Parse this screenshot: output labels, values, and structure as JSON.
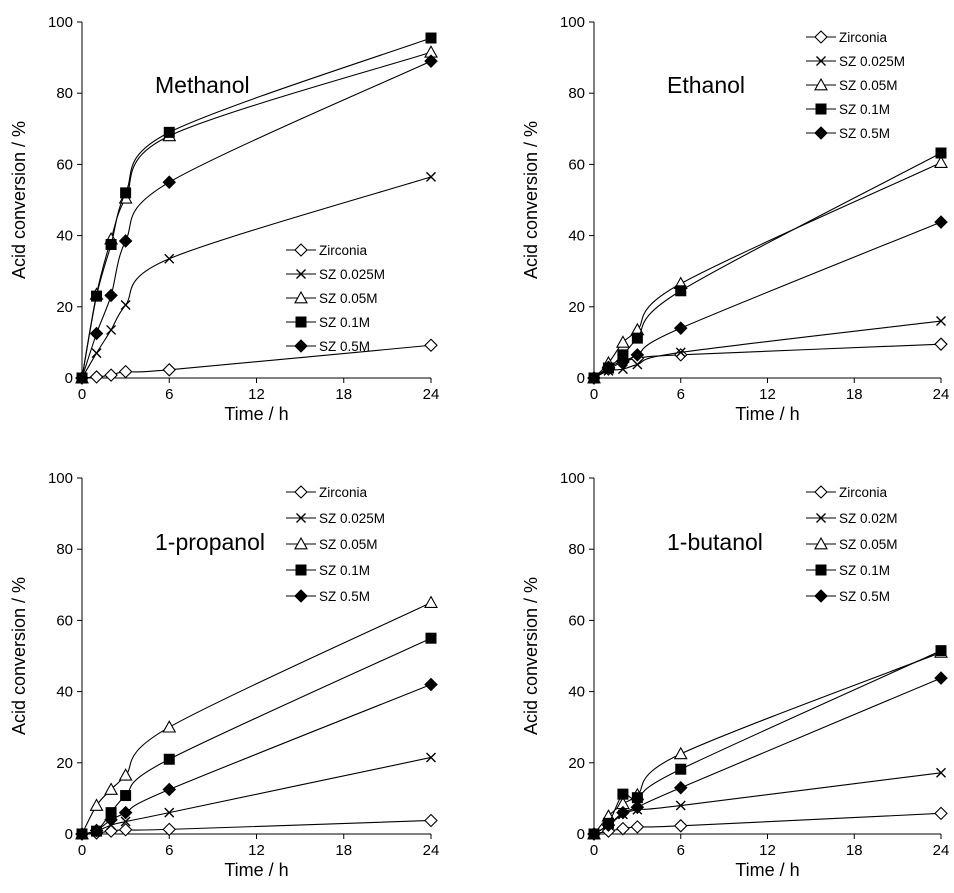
{
  "chart_data": [
    {
      "type": "line",
      "title": "Methanol",
      "xlabel": "Time / h",
      "ylabel": "Acid conversion / %",
      "xlim": [
        0,
        24
      ],
      "ylim": [
        0,
        100
      ],
      "xticks": [
        "0",
        "6",
        "12",
        "18",
        "24"
      ],
      "yticks": [
        "0",
        "20",
        "40",
        "60",
        "80",
        "100"
      ],
      "grid": false,
      "legend_position": "lower-right",
      "series": [
        {
          "name": "Zirconia",
          "marker": "open-diamond",
          "x": [
            0,
            1,
            2,
            3,
            6,
            24
          ],
          "y": [
            0,
            0.3,
            0.8,
            1.8,
            2.3,
            9.2
          ]
        },
        {
          "name": "SZ 0.025M",
          "marker": "cross",
          "x": [
            0,
            1,
            2,
            3,
            6,
            24
          ],
          "y": [
            0,
            7,
            13.5,
            20.5,
            33.5,
            56.5
          ]
        },
        {
          "name": "SZ 0.05M",
          "marker": "open-triangle",
          "x": [
            0,
            1,
            2,
            3,
            6,
            24
          ],
          "y": [
            0,
            23.5,
            39,
            50.5,
            68,
            91.5
          ]
        },
        {
          "name": "SZ 0.1M",
          "marker": "filled-square",
          "x": [
            0,
            1,
            2,
            3,
            6,
            24
          ],
          "y": [
            0,
            23,
            37.5,
            52,
            69,
            95.5
          ]
        },
        {
          "name": "SZ 0.5M",
          "marker": "filled-diamond",
          "x": [
            0,
            1,
            2,
            3,
            6,
            24
          ],
          "y": [
            0,
            12.5,
            23.2,
            38.5,
            55,
            89
          ]
        }
      ]
    },
    {
      "type": "line",
      "title": "Ethanol",
      "xlabel": "Time / h",
      "ylabel": "Acid conversion / %",
      "xlim": [
        0,
        24
      ],
      "ylim": [
        0,
        100
      ],
      "xticks": [
        "0",
        "6",
        "12",
        "18",
        "24"
      ],
      "yticks": [
        "0",
        "20",
        "40",
        "60",
        "80",
        "100"
      ],
      "grid": false,
      "legend_position": "top-right",
      "series": [
        {
          "name": "Zirconia",
          "marker": "open-diamond",
          "x": [
            0,
            1,
            2,
            3,
            6,
            24
          ],
          "y": [
            0,
            2.5,
            4.5,
            5.5,
            6.5,
            9.5
          ]
        },
        {
          "name": "SZ 0.025M",
          "marker": "cross",
          "x": [
            0,
            1,
            2,
            3,
            6,
            24
          ],
          "y": [
            0,
            2,
            2.5,
            3.8,
            7.2,
            16
          ]
        },
        {
          "name": "SZ 0.05M",
          "marker": "open-triangle",
          "x": [
            0,
            1,
            2,
            3,
            6,
            24
          ],
          "y": [
            0,
            4.2,
            10,
            13.5,
            26.5,
            60.5
          ]
        },
        {
          "name": "SZ 0.1M",
          "marker": "filled-square",
          "x": [
            0,
            1,
            2,
            3,
            6,
            24
          ],
          "y": [
            0,
            2.8,
            6.5,
            11.2,
            24.5,
            63.2
          ]
        },
        {
          "name": "SZ 0.5M",
          "marker": "filled-diamond",
          "x": [
            0,
            1,
            2,
            3,
            6,
            24
          ],
          "y": [
            0,
            3,
            4.8,
            6.5,
            14,
            43.8
          ]
        }
      ]
    },
    {
      "type": "line",
      "title": "1-propanol",
      "xlabel": "Time / h",
      "ylabel": "Acid conversion / %",
      "xlim": [
        0,
        24
      ],
      "ylim": [
        0,
        100
      ],
      "xticks": [
        "0",
        "6",
        "12",
        "18",
        "24"
      ],
      "yticks": [
        "0",
        "20",
        "40",
        "60",
        "80",
        "100"
      ],
      "grid": false,
      "legend_position": "top-right",
      "series": [
        {
          "name": "Zirconia",
          "marker": "open-diamond",
          "x": [
            0,
            1,
            2,
            3,
            6,
            24
          ],
          "y": [
            0,
            0.3,
            0.8,
            1.2,
            1.3,
            3.8
          ]
        },
        {
          "name": "SZ 0.025M",
          "marker": "cross",
          "x": [
            0,
            1,
            2,
            3,
            6,
            24
          ],
          "y": [
            0,
            0.8,
            2.5,
            3.5,
            6,
            21.5
          ]
        },
        {
          "name": "SZ 0.05M",
          "marker": "open-triangle",
          "x": [
            0,
            1,
            2,
            3,
            6,
            24
          ],
          "y": [
            0,
            8,
            12.5,
            16.5,
            30,
            65
          ]
        },
        {
          "name": "SZ 0.1M",
          "marker": "filled-square",
          "x": [
            0,
            1,
            2,
            3,
            6,
            24
          ],
          "y": [
            0,
            0.8,
            6,
            10.8,
            21,
            55
          ]
        },
        {
          "name": "SZ 0.5M",
          "marker": "filled-diamond",
          "x": [
            0,
            1,
            2,
            3,
            6,
            24
          ],
          "y": [
            0,
            1,
            4,
            6,
            12.5,
            42
          ]
        }
      ]
    },
    {
      "type": "line",
      "title": "1-butanol",
      "xlabel": "Time / h",
      "ylabel": "Acid conversion / %",
      "xlim": [
        0,
        24
      ],
      "ylim": [
        0,
        100
      ],
      "xticks": [
        "0",
        "6",
        "12",
        "18",
        "24"
      ],
      "yticks": [
        "0",
        "20",
        "40",
        "60",
        "80",
        "100"
      ],
      "grid": false,
      "legend_position": "top-right",
      "series": [
        {
          "name": "Zirconia",
          "marker": "open-diamond",
          "x": [
            0,
            1,
            2,
            3,
            6,
            24
          ],
          "y": [
            0,
            0.8,
            1.5,
            2,
            2.3,
            5.8
          ]
        },
        {
          "name": "SZ 0.02M",
          "marker": "cross",
          "x": [
            0,
            1,
            2,
            3,
            6,
            24
          ],
          "y": [
            0,
            2.5,
            5.5,
            6.8,
            8,
            17.2
          ]
        },
        {
          "name": "SZ 0.05M",
          "marker": "open-triangle",
          "x": [
            0,
            1,
            2,
            3,
            6,
            24
          ],
          "y": [
            0,
            5,
            8.5,
            11,
            22.5,
            51
          ]
        },
        {
          "name": "SZ 0.1M",
          "marker": "filled-square",
          "x": [
            0,
            1,
            2,
            3,
            6,
            24
          ],
          "y": [
            0,
            3,
            11.2,
            10.2,
            18.2,
            51.5
          ]
        },
        {
          "name": "SZ 0.5M",
          "marker": "filled-diamond",
          "x": [
            0,
            1,
            2,
            3,
            6,
            24
          ],
          "y": [
            0,
            2.5,
            6,
            7.5,
            13,
            43.8
          ]
        }
      ]
    }
  ]
}
